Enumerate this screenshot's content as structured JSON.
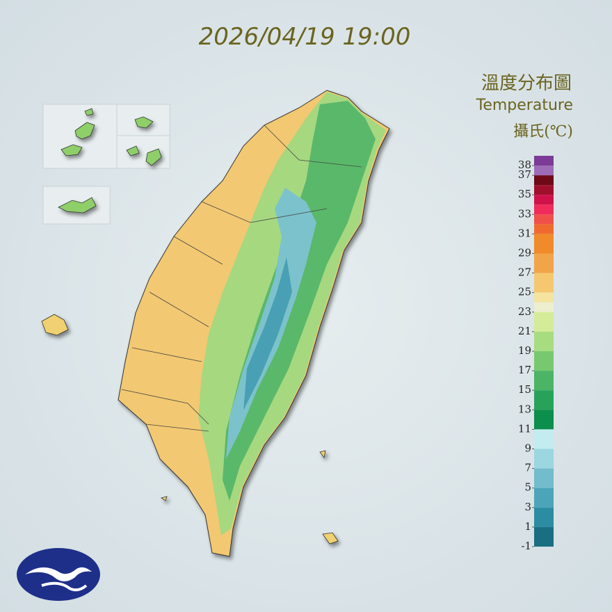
{
  "timestamp": "2026/04/19 19:00",
  "title": "溫度分布圖",
  "subtitle": "Temperature",
  "unit": "攝氏(℃)",
  "legend": {
    "ylim": [
      -1,
      39
    ],
    "ticks": [
      38,
      37,
      35,
      33,
      31,
      29,
      27,
      25,
      23,
      21,
      19,
      17,
      15,
      13,
      11,
      9,
      7,
      5,
      3,
      1,
      -1
    ],
    "bands": [
      {
        "from": 38,
        "to": 39,
        "color": "#7b3b96"
      },
      {
        "from": 37,
        "to": 38,
        "color": "#9e6bb6"
      },
      {
        "from": 36,
        "to": 37,
        "color": "#6e0a18"
      },
      {
        "from": 35,
        "to": 36,
        "color": "#a0102c"
      },
      {
        "from": 34,
        "to": 35,
        "color": "#d0124a"
      },
      {
        "from": 33,
        "to": 34,
        "color": "#f02a5a"
      },
      {
        "from": 32,
        "to": 33,
        "color": "#f0504a"
      },
      {
        "from": 31,
        "to": 32,
        "color": "#f06a30"
      },
      {
        "from": 29,
        "to": 31,
        "color": "#f08a2a"
      },
      {
        "from": 27,
        "to": 29,
        "color": "#f2a448"
      },
      {
        "from": 25,
        "to": 27,
        "color": "#f5c870"
      },
      {
        "from": 24,
        "to": 25,
        "color": "#f4e4a0"
      },
      {
        "from": 23,
        "to": 24,
        "color": "#eeeed0"
      },
      {
        "from": 21,
        "to": 23,
        "color": "#d4ec98"
      },
      {
        "from": 19,
        "to": 21,
        "color": "#a8dc80"
      },
      {
        "from": 17,
        "to": 19,
        "color": "#78c870"
      },
      {
        "from": 15,
        "to": 17,
        "color": "#4cb466"
      },
      {
        "from": 13,
        "to": 15,
        "color": "#28a25a"
      },
      {
        "from": 11,
        "to": 13,
        "color": "#0c8e4c"
      },
      {
        "from": 9,
        "to": 11,
        "color": "#c2ecf0"
      },
      {
        "from": 7,
        "to": 9,
        "color": "#9cd6e0"
      },
      {
        "from": 5,
        "to": 7,
        "color": "#72bccc"
      },
      {
        "from": 3,
        "to": 5,
        "color": "#4ca4b8"
      },
      {
        "from": 1,
        "to": 3,
        "color": "#2c8ca2"
      },
      {
        "from": -1,
        "to": 1,
        "color": "#1a6e82"
      }
    ]
  }
}
